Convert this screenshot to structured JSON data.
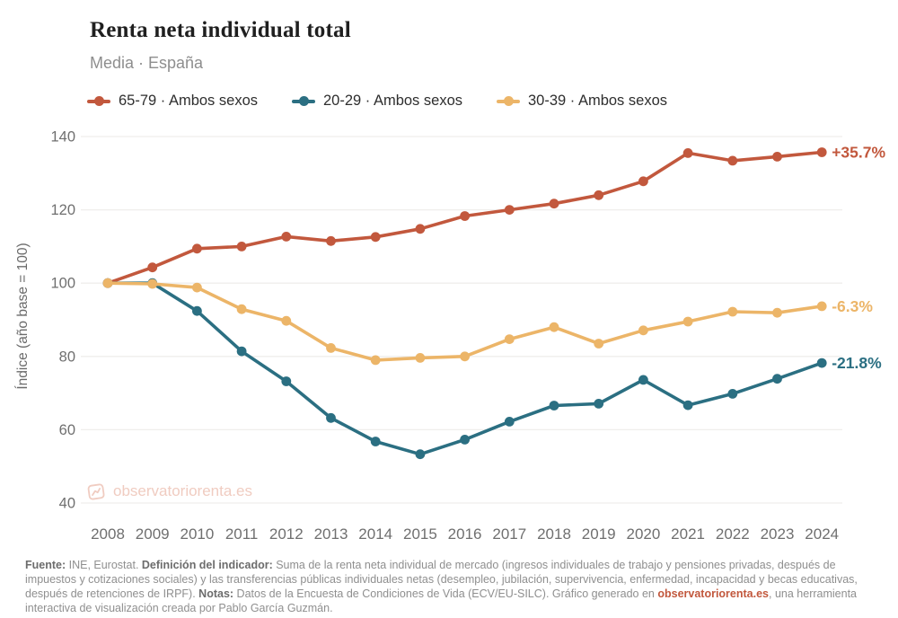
{
  "header": {
    "title": "Renta neta individual total",
    "subtitle": "Media · España"
  },
  "legend": {
    "items": [
      {
        "label": "65-79 · Ambos sexos",
        "color": "#c2583d"
      },
      {
        "label": "20-29 · Ambos sexos",
        "color": "#2b6f82"
      },
      {
        "label": "30-39 · Ambos sexos",
        "color": "#ecb568"
      }
    ]
  },
  "chart_data": {
    "type": "line",
    "title": "Renta neta individual total",
    "subtitle": "Media · España",
    "ylabel": "Índice (año base = 100)",
    "xlabel": "",
    "x": [
      "2008",
      "2009",
      "2010",
      "2011",
      "2012",
      "2013",
      "2014",
      "2015",
      "2016",
      "2017",
      "2018",
      "2019",
      "2020",
      "2021",
      "2022",
      "2023",
      "2024"
    ],
    "yticks": [
      40,
      60,
      80,
      100,
      120,
      140
    ],
    "ylim": [
      40,
      145
    ],
    "grid": "horizontal",
    "legend_position": "top",
    "series": [
      {
        "name": "65-79 · Ambos sexos",
        "color": "#c2583d",
        "end_label": "+35.7%",
        "values": [
          100,
          104.3,
          109.4,
          110,
          112.7,
          111.5,
          112.6,
          114.8,
          118.3,
          120,
          121.7,
          124,
          127.8,
          135.5,
          133.4,
          134.5,
          135.7
        ]
      },
      {
        "name": "20-29 · Ambos sexos",
        "color": "#2b6f82",
        "end_label": "-21.8%",
        "values": [
          100,
          100,
          92.4,
          81.4,
          73.2,
          63.2,
          56.8,
          53.3,
          57.3,
          62.2,
          66.6,
          67.1,
          73.6,
          66.7,
          69.8,
          73.9,
          78.2
        ]
      },
      {
        "name": "30-39 · Ambos sexos",
        "color": "#ecb568",
        "end_label": "-6.3%",
        "values": [
          100,
          99.8,
          98.8,
          92.9,
          89.7,
          82.3,
          79,
          79.6,
          80,
          84.7,
          88,
          83.5,
          87.1,
          89.5,
          92.2,
          91.9,
          93.7
        ]
      }
    ],
    "axis_text_color": "#6f6f6f",
    "gridline_color": "#efeeec"
  },
  "watermark": {
    "text": "observatoriorenta.es",
    "color": "#f0ccc1"
  },
  "footer": {
    "runs": [
      {
        "text": "Fuente:",
        "bold": true
      },
      {
        "text": " INE, Eurostat. ",
        "bold": false
      },
      {
        "text": "Definición del indicador:",
        "bold": true
      },
      {
        "text": " Suma de la renta neta individual de mercado (ingresos individuales de trabajo y pensiones privadas, después de impuestos y cotizaciones sociales) y las transferencias públicas individuales netas (desempleo, jubilación, supervivencia, enfermedad, incapacidad y becas educativas, después de retenciones de IRPF). ",
        "bold": false
      },
      {
        "text": "Notas:",
        "bold": true
      },
      {
        "text": " Datos de la Encuesta de Condiciones de Vida (ECV/EU-SILC). Gráfico generado en ",
        "bold": false
      },
      {
        "text": "observatoriorenta.es",
        "bold": true,
        "link": true
      },
      {
        "text": ", una herramienta interactiva de visualización creada por Pablo García Guzmán.",
        "bold": false
      }
    ]
  }
}
